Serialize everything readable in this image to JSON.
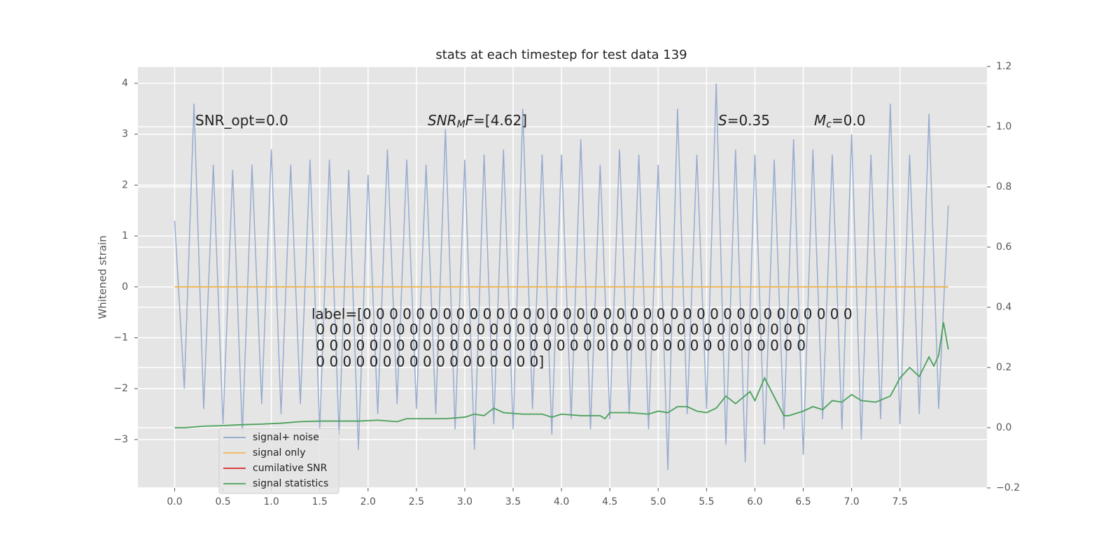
{
  "chart_data": {
    "type": "line",
    "title": "stats at each timestep for test data 139",
    "ylabel": "Whitened strain",
    "xlim": [
      -0.38,
      8.4
    ],
    "ylim": [
      -3.95,
      4.33
    ],
    "y2lim": [
      -0.2,
      1.2
    ],
    "xticks": [
      {
        "value": 0,
        "label": "0.0"
      },
      0.5,
      {
        "value": 1,
        "label": "1.0"
      },
      1.5,
      {
        "value": 2,
        "label": "2.0"
      },
      2.5,
      {
        "value": 3,
        "label": "3.0"
      },
      3.5,
      {
        "value": 4,
        "label": "4.0"
      },
      4.5,
      {
        "value": 5,
        "label": "5.0"
      },
      5.5,
      {
        "value": 6,
        "label": "6.0"
      },
      6.5,
      {
        "value": 7,
        "label": "7.0"
      },
      7.5
    ],
    "yticks": [
      {
        "value": -3,
        "label": "−3"
      },
      {
        "value": -2,
        "label": "−2"
      },
      {
        "value": -1,
        "label": "−1"
      },
      0,
      1,
      2,
      3,
      4
    ],
    "y2ticks": [
      {
        "value": -0.2,
        "label": "−0.2"
      },
      {
        "value": 0,
        "label": "0.0"
      },
      0.2,
      0.4,
      0.6,
      0.8,
      {
        "value": 1,
        "label": "1.0"
      },
      1.2
    ],
    "grid": true,
    "legend": "lower left",
    "series": [
      {
        "name": "signal+ noise",
        "color": "#8fa5cc",
        "x": [
          0,
          0.1,
          0.2,
          0.3,
          0.4,
          0.5,
          0.6,
          0.7,
          0.8,
          0.9,
          1,
          1.1,
          1.2,
          1.3,
          1.4,
          1.5,
          1.6,
          1.7,
          1.8,
          1.9,
          2,
          2.1,
          2.2,
          2.3,
          2.4,
          2.5,
          2.6,
          2.7,
          2.8,
          2.9,
          3,
          3.1,
          3.2,
          3.3,
          3.4,
          3.5,
          3.6,
          3.7,
          3.8,
          3.9,
          4,
          4.1,
          4.2,
          4.3,
          4.4,
          4.5,
          4.6,
          4.7,
          4.8,
          4.9,
          5,
          5.1,
          5.2,
          5.3,
          5.4,
          5.5,
          5.6,
          5.7,
          5.8,
          5.9,
          6,
          6.1,
          6.2,
          6.3,
          6.4,
          6.5,
          6.6,
          6.7,
          6.8,
          6.9,
          7,
          7.1,
          7.2,
          7.3,
          7.4,
          7.5,
          7.6,
          7.7,
          7.8,
          7.9,
          8
        ],
        "values": [
          1.3,
          -2.0,
          3.6,
          -2.4,
          2.4,
          -2.7,
          2.3,
          -2.9,
          2.4,
          -2.3,
          2.7,
          -2.5,
          2.4,
          -2.3,
          2.5,
          -2.8,
          2.5,
          -2.9,
          2.3,
          -3.2,
          2.2,
          -2.5,
          2.7,
          -2.3,
          2.5,
          -2.4,
          2.4,
          -2.5,
          3.1,
          -2.8,
          2.5,
          -3.2,
          2.6,
          -2.7,
          2.7,
          -2.8,
          3.5,
          -2.4,
          2.6,
          -2.9,
          2.6,
          -2.6,
          2.9,
          -2.8,
          2.4,
          -2.6,
          2.7,
          -2.5,
          2.6,
          -2.8,
          2.4,
          -3.6,
          3.5,
          -2.5,
          2.6,
          -2.4,
          4.0,
          -3.1,
          2.7,
          -3.45,
          2.6,
          -3.1,
          2.5,
          -2.8,
          2.9,
          -3.3,
          2.7,
          -2.6,
          2.6,
          -2.8,
          3.0,
          -3.0,
          2.6,
          -2.6,
          3.6,
          -2.7,
          2.6,
          -2.5,
          3.4,
          -2.4,
          1.6
        ]
      },
      {
        "name": "signal only",
        "color": "#f2b44f",
        "x": [
          0,
          8
        ],
        "values": [
          0,
          0
        ]
      },
      {
        "name": "cumilative SNR",
        "color": "#d62728",
        "x": [],
        "values": []
      },
      {
        "name": "signal statistics",
        "color": "#4aa15a",
        "axis": "y2",
        "x": [
          0,
          0.1,
          0.3,
          0.5,
          0.7,
          0.9,
          1.1,
          1.3,
          1.5,
          1.7,
          1.9,
          2.1,
          2.3,
          2.4,
          2.6,
          2.8,
          3.0,
          3.1,
          3.2,
          3.3,
          3.4,
          3.6,
          3.8,
          3.9,
          4.0,
          4.2,
          4.4,
          4.45,
          4.5,
          4.7,
          4.9,
          5.0,
          5.1,
          5.2,
          5.3,
          5.4,
          5.5,
          5.6,
          5.7,
          5.8,
          5.95,
          6.0,
          6.1,
          6.3,
          6.35,
          6.5,
          6.6,
          6.7,
          6.8,
          6.9,
          7.0,
          7.1,
          7.25,
          7.4,
          7.5,
          7.6,
          7.7,
          7.8,
          7.85,
          7.9,
          7.95,
          8.0
        ],
        "values": [
          0.0,
          0.0,
          0.005,
          0.007,
          0.01,
          0.012,
          0.015,
          0.02,
          0.022,
          0.022,
          0.022,
          0.025,
          0.02,
          0.03,
          0.03,
          0.03,
          0.035,
          0.045,
          0.04,
          0.065,
          0.05,
          0.045,
          0.045,
          0.035,
          0.045,
          0.04,
          0.04,
          0.03,
          0.05,
          0.05,
          0.045,
          0.055,
          0.05,
          0.07,
          0.07,
          0.055,
          0.05,
          0.065,
          0.105,
          0.08,
          0.12,
          0.09,
          0.165,
          0.04,
          0.04,
          0.055,
          0.07,
          0.06,
          0.09,
          0.085,
          0.11,
          0.09,
          0.085,
          0.105,
          0.165,
          0.2,
          0.17,
          0.235,
          0.205,
          0.24,
          0.35,
          0.26
        ]
      }
    ],
    "annotations": [
      [
        "SNR_opt=0.0"
      ],
      [
        "SNR",
        "M",
        "F",
        "=[4.62]"
      ],
      [
        "S",
        "=0.35"
      ],
      [
        "M",
        "c",
        "=0.0"
      ]
    ],
    "label_lines": [
      "label=[0 0 0 0 0 0 0 0 0 0 0 0 0 0 0 0 0 0 0 0 0 0 0 0 0 0 0 0 0 0 0 0 0 0 0 0 0",
      " 0 0 0 0 0 0 0 0 0 0 0 0 0 0 0 0 0 0 0 0 0 0 0 0 0 0 0 0 0 0 0 0 0 0 0 0 0",
      " 0 0 0 0 0 0 0 0 0 0 0 0 0 0 0 0 0 0 0 0 0 0 0 0 0 0 0 0 0 0 0 0 0 0 0 0 0",
      " 0 0 0 0 0 0 0 0 0 0 0 0 0 0 0 0 0]"
    ]
  }
}
